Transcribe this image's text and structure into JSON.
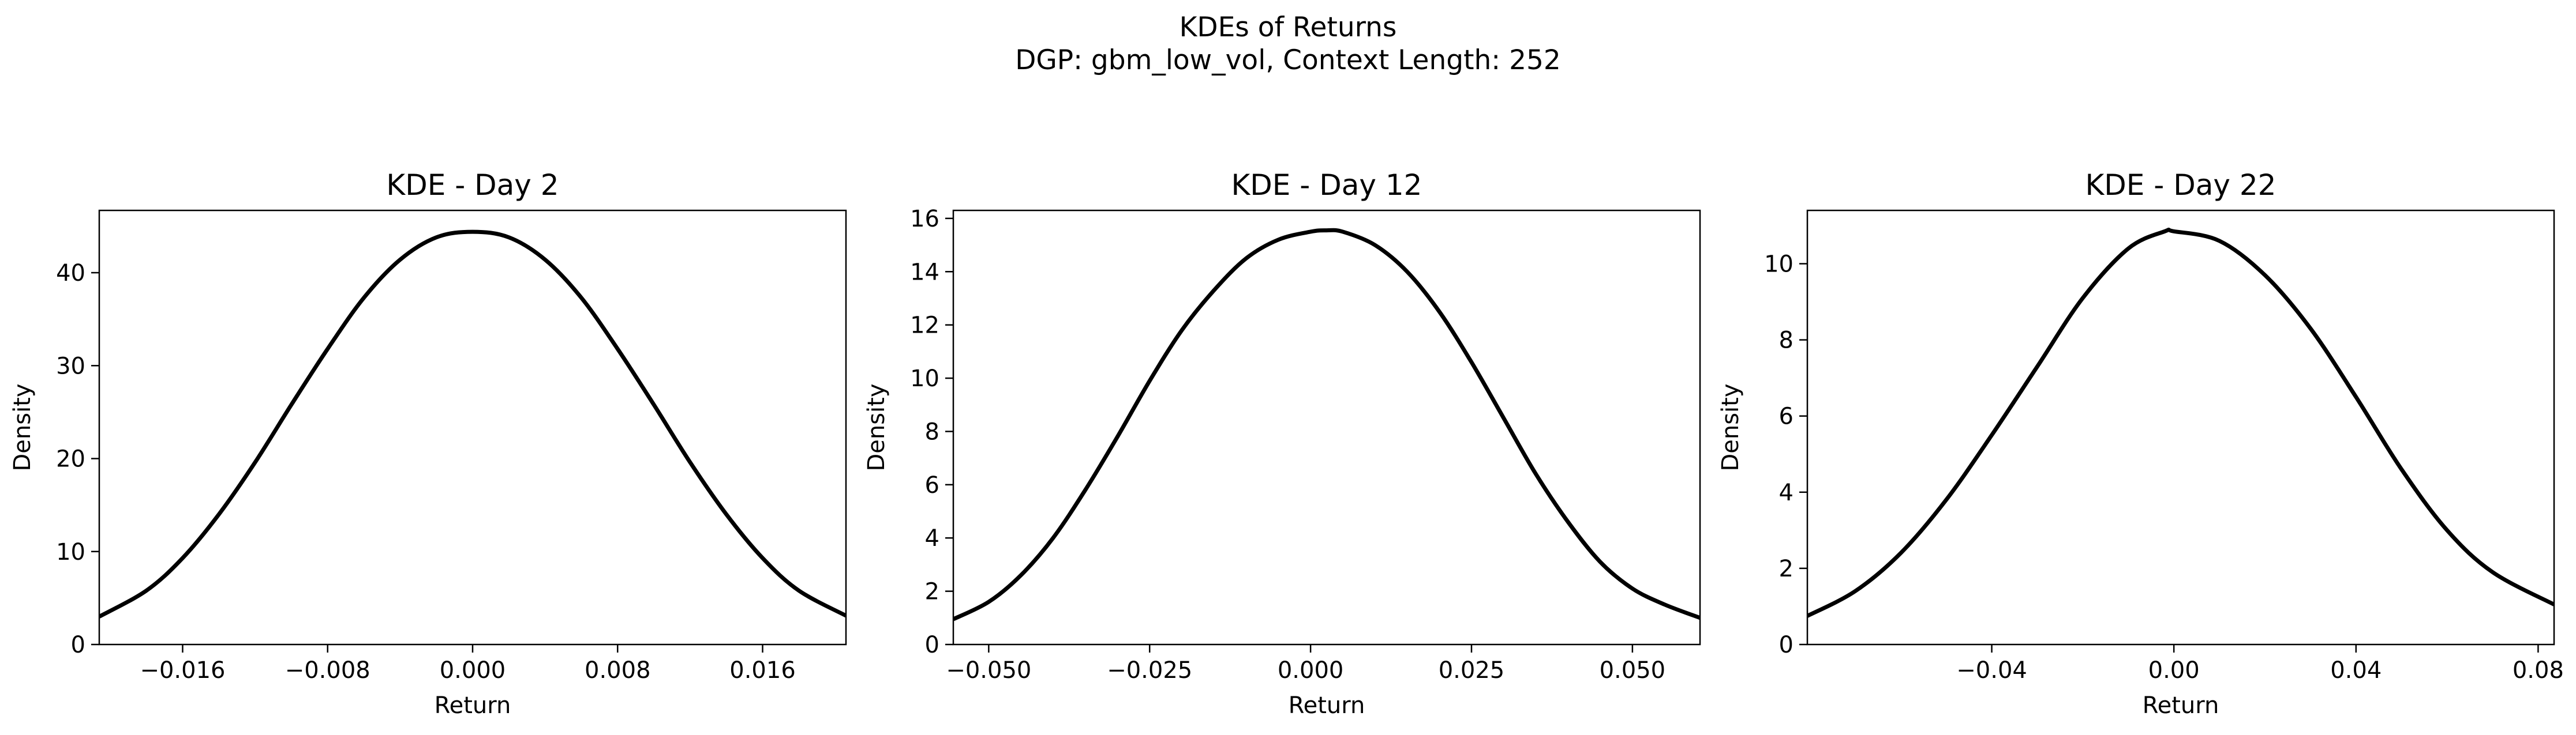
{
  "figure": {
    "title_line1": "KDEs of Returns",
    "title_line2": "DGP: gbm_low_vol, Context Length: 252",
    "line_color": "#000000"
  },
  "chart_data": [
    {
      "type": "line",
      "title": "KDE - Day 2",
      "xlabel": "Return",
      "ylabel": "Density",
      "xlim": [
        -0.0206,
        0.0206
      ],
      "ylim": [
        0,
        46.7
      ],
      "xticks": [
        -0.016,
        -0.008,
        0.0,
        0.008,
        0.016
      ],
      "xtick_labels": [
        "−0.016",
        "−0.008",
        "0.000",
        "0.008",
        "0.016"
      ],
      "yticks": [
        0,
        10,
        20,
        30,
        40
      ],
      "ytick_labels": [
        "0",
        "10",
        "20",
        "30",
        "40"
      ],
      "grid": false,
      "series": [
        {
          "x": [
            -0.0206,
            -0.018,
            -0.016,
            -0.014,
            -0.012,
            -0.01,
            -0.008,
            -0.006,
            -0.004,
            -0.002,
            0.0,
            0.002,
            0.004,
            0.006,
            0.008,
            0.01,
            0.012,
            0.014,
            0.016,
            0.018,
            0.0206
          ],
          "y": [
            3.0,
            5.8,
            9.3,
            14.0,
            19.6,
            25.8,
            31.8,
            37.3,
            41.4,
            43.8,
            44.4,
            43.8,
            41.4,
            37.3,
            31.8,
            25.8,
            19.6,
            14.0,
            9.3,
            5.8,
            3.1
          ]
        }
      ]
    },
    {
      "type": "line",
      "title": "KDE - Day 12",
      "xlabel": "Return",
      "ylabel": "Density",
      "xlim": [
        -0.0555,
        0.0605
      ],
      "ylim": [
        0,
        16.3
      ],
      "xticks": [
        -0.05,
        -0.025,
        0.0,
        0.025,
        0.05
      ],
      "xtick_labels": [
        "−0.050",
        "−0.025",
        "0.000",
        "0.025",
        "0.050"
      ],
      "yticks": [
        0,
        2,
        4,
        6,
        8,
        10,
        12,
        14,
        16
      ],
      "ytick_labels": [
        "0",
        "2",
        "4",
        "6",
        "8",
        "10",
        "12",
        "14",
        "16"
      ],
      "grid": false,
      "series": [
        {
          "x": [
            -0.0555,
            -0.05,
            -0.045,
            -0.04,
            -0.035,
            -0.03,
            -0.025,
            -0.02,
            -0.015,
            -0.01,
            -0.005,
            0.0,
            0.0025,
            0.005,
            0.01,
            0.015,
            0.02,
            0.025,
            0.03,
            0.035,
            0.04,
            0.045,
            0.05,
            0.055,
            0.0605
          ],
          "y": [
            0.95,
            1.6,
            2.6,
            4.0,
            5.8,
            7.8,
            9.9,
            11.8,
            13.3,
            14.5,
            15.2,
            15.5,
            15.55,
            15.5,
            15.0,
            14.0,
            12.5,
            10.6,
            8.5,
            6.4,
            4.6,
            3.1,
            2.1,
            1.5,
            1.0
          ]
        }
      ]
    },
    {
      "type": "line",
      "title": "KDE - Day 22",
      "xlabel": "Return",
      "ylabel": "Density",
      "xlim": [
        -0.0805,
        0.0835
      ],
      "ylim": [
        0,
        11.4
      ],
      "xticks": [
        -0.04,
        0.0,
        0.04,
        0.08
      ],
      "xtick_labels": [
        "−0.04",
        "0.00",
        "0.04",
        "0.08"
      ],
      "yticks": [
        0,
        2,
        4,
        6,
        8,
        10
      ],
      "ytick_labels": [
        "0",
        "2",
        "4",
        "6",
        "8",
        "10"
      ],
      "grid": false,
      "series": [
        {
          "x": [
            -0.0805,
            -0.07,
            -0.06,
            -0.05,
            -0.04,
            -0.03,
            -0.02,
            -0.01,
            -0.002,
            0.0,
            0.01,
            0.02,
            0.03,
            0.04,
            0.05,
            0.06,
            0.07,
            0.0835
          ],
          "y": [
            0.75,
            1.4,
            2.4,
            3.8,
            5.5,
            7.3,
            9.1,
            10.4,
            10.85,
            10.85,
            10.6,
            9.7,
            8.3,
            6.5,
            4.6,
            3.0,
            1.9,
            1.05
          ]
        }
      ]
    }
  ]
}
